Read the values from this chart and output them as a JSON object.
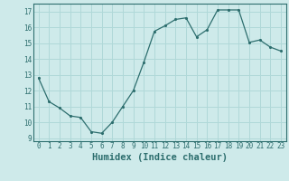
{
  "x": [
    0,
    1,
    2,
    3,
    4,
    5,
    6,
    7,
    8,
    9,
    10,
    11,
    12,
    13,
    14,
    15,
    16,
    17,
    18,
    19,
    20,
    21,
    22,
    23
  ],
  "y": [
    12.8,
    11.3,
    10.9,
    10.4,
    10.3,
    9.4,
    9.3,
    10.0,
    11.0,
    12.0,
    13.8,
    15.75,
    16.1,
    16.5,
    16.6,
    15.4,
    15.85,
    17.1,
    17.1,
    17.1,
    15.05,
    15.2,
    14.75,
    14.5
  ],
  "xlabel": "Humidex (Indice chaleur)",
  "ylim": [
    8.8,
    17.5
  ],
  "xlim": [
    -0.5,
    23.5
  ],
  "yticks": [
    9,
    10,
    11,
    12,
    13,
    14,
    15,
    16,
    17
  ],
  "xticks": [
    0,
    1,
    2,
    3,
    4,
    5,
    6,
    7,
    8,
    9,
    10,
    11,
    12,
    13,
    14,
    15,
    16,
    17,
    18,
    19,
    20,
    21,
    22,
    23
  ],
  "line_color": "#2d6e6e",
  "marker": ".",
  "bg_color": "#ceeaea",
  "grid_color": "#b0d8d8",
  "tick_color": "#2d6e6e",
  "label_color": "#2d6e6e",
  "xlabel_fontsize": 7.5,
  "tick_fontsize": 5.5
}
